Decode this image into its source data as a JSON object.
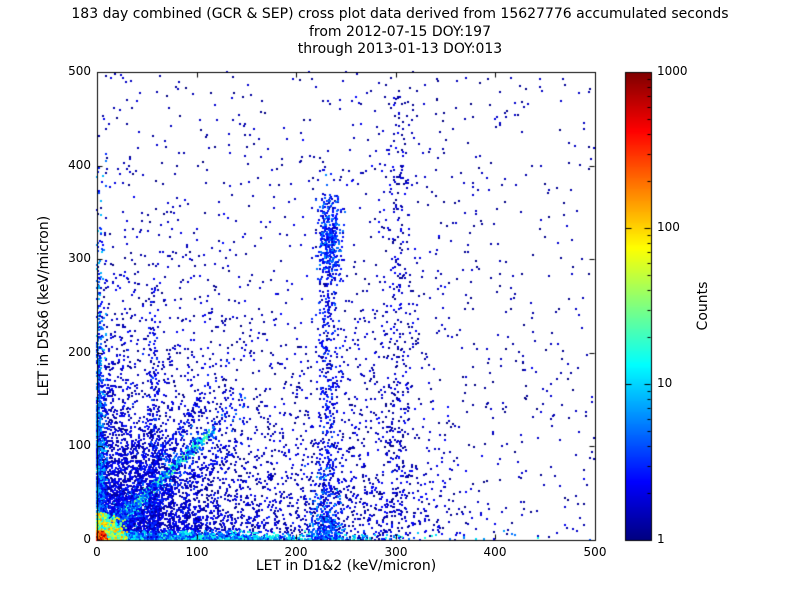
{
  "chart_data": {
    "type": "scatter",
    "title": "183 day combined (GCR & SEP) cross plot data derived from 15627776 accumulated seconds",
    "subtitle": [
      "from 2012-07-15 DOY:197",
      "through 2013-01-13 DOY:013"
    ],
    "xlabel": "LET in D1&2 (keV/micron)",
    "ylabel": "LET in D5&6 (keV/micron)",
    "xlim": [
      0,
      500
    ],
    "ylim": [
      0,
      500
    ],
    "xticks": [
      0,
      100,
      200,
      300,
      400,
      500
    ],
    "yticks": [
      0,
      100,
      200,
      300,
      400,
      500
    ],
    "grid": false,
    "colorbar": {
      "label": "Counts",
      "scale": "log",
      "min": 1,
      "max": 1000,
      "tick_labels": [
        "1",
        "10",
        "100",
        "1000"
      ],
      "colormap": "jet"
    },
    "distribution_note": "2D histogram of coincident LET events; v is log10(counts) in [0,3] mapped through the jet colormap. Clusters describe the density structure: an intense hot core at the origin, dense bands along both axes, a tight y=x diagonal ridge to ~110 keV/micron, fainter rays, vertical event streaks near x=57, x=232 and x=302, and a sparse blue background across the full plane.",
    "clusters": [
      {
        "name": "background-sparse",
        "n": 900,
        "x": {
          "type": "uniform",
          "min": 0,
          "max": 500
        },
        "y": {
          "type": "uniform",
          "min": 0,
          "max": 500
        },
        "v": [
          0.0,
          0.25
        ]
      },
      {
        "name": "broad-lowleft-cloud",
        "n": 3200,
        "x": {
          "type": "exp",
          "scale": 90,
          "max": 500
        },
        "y": {
          "type": "exp",
          "scale": 90,
          "max": 500
        },
        "v": [
          0.0,
          0.35
        ]
      },
      {
        "name": "mid-cloud",
        "n": 1800,
        "x": {
          "type": "exp",
          "scale": 40,
          "max": 300
        },
        "y": {
          "type": "exp",
          "scale": 40,
          "max": 300
        },
        "v": [
          0.1,
          0.5
        ]
      },
      {
        "name": "upper-mid-population",
        "n": 700,
        "x": {
          "type": "normal",
          "mean": 265,
          "sd": 45
        },
        "y": {
          "type": "exp",
          "scale": 130,
          "max": 480
        },
        "v": [
          0.0,
          0.4
        ]
      },
      {
        "name": "left-column",
        "n": 1400,
        "x": {
          "type": "exp",
          "scale": 3,
          "max": 10
        },
        "y": {
          "type": "exp",
          "scale": 80,
          "max": 420
        },
        "v": [
          0.3,
          1.0
        ]
      },
      {
        "name": "bottom-band",
        "n": 2600,
        "x": {
          "type": "exp",
          "scale": 70,
          "max": 500
        },
        "y": {
          "type": "exp",
          "scale": 3,
          "max": 10
        },
        "v": [
          0.4,
          1.3
        ]
      },
      {
        "name": "diag-faint-upper",
        "n": 350,
        "x": {
          "type": "exp",
          "scale": 40,
          "max": 140
        },
        "diag": {
          "slope": 1.45,
          "sd": 5
        },
        "v": [
          0.1,
          0.5
        ]
      },
      {
        "name": "diag-faint-lower",
        "n": 350,
        "x": {
          "type": "exp",
          "scale": 50,
          "max": 160
        },
        "diag": {
          "slope": 0.7,
          "sd": 5
        },
        "v": [
          0.1,
          0.5
        ]
      },
      {
        "name": "main-diagonal",
        "n": 2200,
        "x": {
          "type": "exp",
          "scale": 35,
          "max": 118
        },
        "diag": {
          "slope": 1.0,
          "sd": 3
        },
        "v": [
          0.6,
          1.5
        ]
      },
      {
        "name": "diagonal-spread",
        "n": 700,
        "x": {
          "type": "exp",
          "scale": 45,
          "max": 150
        },
        "diag": {
          "slope": 1.0,
          "sd": 10
        },
        "v": [
          0.2,
          0.8
        ]
      },
      {
        "name": "vert-streak-57",
        "n": 260,
        "x": {
          "type": "normal",
          "mean": 57,
          "sd": 3
        },
        "y": {
          "type": "exp",
          "scale": 90,
          "max": 340
        },
        "v": [
          0.1,
          0.6
        ]
      },
      {
        "name": "vert-streak-232",
        "n": 420,
        "x": {
          "type": "normal",
          "mean": 232,
          "sd": 5
        },
        "y": {
          "type": "uniform",
          "min": 10,
          "max": 370
        },
        "v": [
          0.1,
          0.6
        ]
      },
      {
        "name": "blob-232-320",
        "n": 300,
        "x": {
          "type": "normal",
          "mean": 235,
          "sd": 6
        },
        "y": {
          "type": "normal",
          "mean": 320,
          "sd": 22
        },
        "v": [
          0.2,
          0.8
        ]
      },
      {
        "name": "blob-230-low",
        "n": 260,
        "x": {
          "type": "normal",
          "mean": 230,
          "sd": 8
        },
        "y": {
          "type": "exp",
          "scale": 25,
          "max": 80
        },
        "v": [
          0.3,
          0.9
        ]
      },
      {
        "name": "vert-streak-302",
        "n": 240,
        "x": {
          "type": "normal",
          "mean": 302,
          "sd": 8
        },
        "y": {
          "type": "uniform",
          "min": 20,
          "max": 480
        },
        "v": [
          0.0,
          0.4
        ]
      },
      {
        "name": "core-warm",
        "n": 5000,
        "x": {
          "type": "exp",
          "scale": 6,
          "max": 30
        },
        "y": {
          "type": "exp",
          "scale": 6,
          "max": 30
        },
        "v": [
          1.0,
          2.2
        ]
      },
      {
        "name": "core-hot",
        "n": 3000,
        "x": {
          "type": "exp",
          "scale": 2,
          "max": 10
        },
        "y": {
          "type": "exp",
          "scale": 2,
          "max": 10
        },
        "v": [
          2.0,
          3.0
        ]
      }
    ]
  },
  "colors": {
    "background": "#ffffff",
    "axis": "#000000",
    "text": "#000000",
    "colorbar_bottom": "#00007f",
    "colorbar_top": "#7f0000"
  }
}
